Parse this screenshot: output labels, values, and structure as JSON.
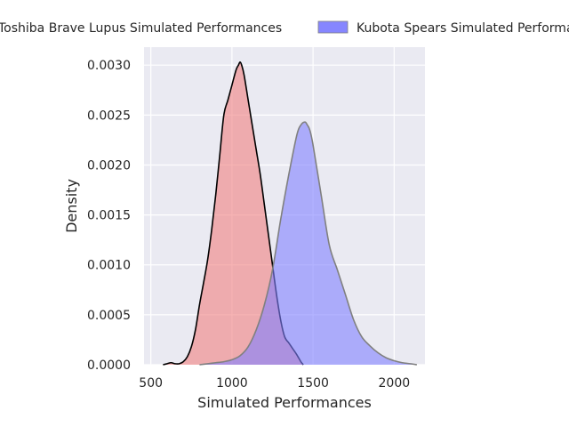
{
  "chart_data": {
    "type": "area",
    "xlabel": "Simulated Performances",
    "ylabel": "Density",
    "xlim": [
      458,
      2190
    ],
    "ylim": [
      0,
      0.00318
    ],
    "xticks": [
      500,
      1000,
      1500,
      2000
    ],
    "xtick_labels": [
      "500",
      "1000",
      "1500",
      "2000"
    ],
    "yticks": [
      0,
      0.0005,
      0.001,
      0.0015,
      0.002,
      0.0025,
      0.003
    ],
    "ytick_labels": [
      "0.0000",
      "0.0005",
      "0.0010",
      "0.0015",
      "0.0020",
      "0.0025",
      "0.0030"
    ],
    "grid": true,
    "legend_position": "top",
    "series": [
      {
        "name": "Toshiba Brave Lupus Simulated Performances",
        "fill": "#f08080",
        "line": "#000000",
        "x": [
          575,
          600,
          625,
          650,
          675,
          700,
          725,
          750,
          775,
          800,
          825,
          850,
          875,
          900,
          925,
          950,
          975,
          1000,
          1025,
          1040,
          1050,
          1060,
          1075,
          1100,
          1125,
          1150,
          1175,
          1200,
          1225,
          1250,
          1275,
          1300,
          1325,
          1350,
          1375,
          1400,
          1425,
          1440
        ],
        "values": [
          0,
          1e-05,
          2e-05,
          1e-05,
          1e-05,
          3e-05,
          8e-05,
          0.00018,
          0.00035,
          0.0006,
          0.00082,
          0.00105,
          0.00135,
          0.0017,
          0.0021,
          0.0025,
          0.00265,
          0.0028,
          0.00295,
          0.003,
          0.00303,
          0.003,
          0.0029,
          0.00265,
          0.0024,
          0.00215,
          0.0019,
          0.0016,
          0.0013,
          0.001,
          0.0007,
          0.00045,
          0.00028,
          0.00022,
          0.00016,
          0.0001,
          3e-05,
          0
        ]
      },
      {
        "name": "Kubota Spears Simulated Performances",
        "fill": "#8080ff",
        "line": "#808080",
        "x": [
          800,
          850,
          900,
          950,
          1000,
          1050,
          1100,
          1150,
          1200,
          1250,
          1300,
          1350,
          1400,
          1425,
          1450,
          1465,
          1480,
          1500,
          1550,
          1600,
          1650,
          1700,
          1750,
          1800,
          1850,
          1900,
          1950,
          2000,
          2050,
          2100,
          2140
        ],
        "values": [
          0,
          1e-05,
          2e-05,
          3e-05,
          5e-05,
          9e-05,
          0.00018,
          0.00035,
          0.0006,
          0.00095,
          0.00145,
          0.0019,
          0.0023,
          0.0024,
          0.00243,
          0.0024,
          0.00235,
          0.0022,
          0.0017,
          0.0012,
          0.00095,
          0.0007,
          0.00045,
          0.00028,
          0.00019,
          0.00012,
          7e-05,
          4e-05,
          2e-05,
          1e-05,
          0
        ]
      }
    ]
  }
}
